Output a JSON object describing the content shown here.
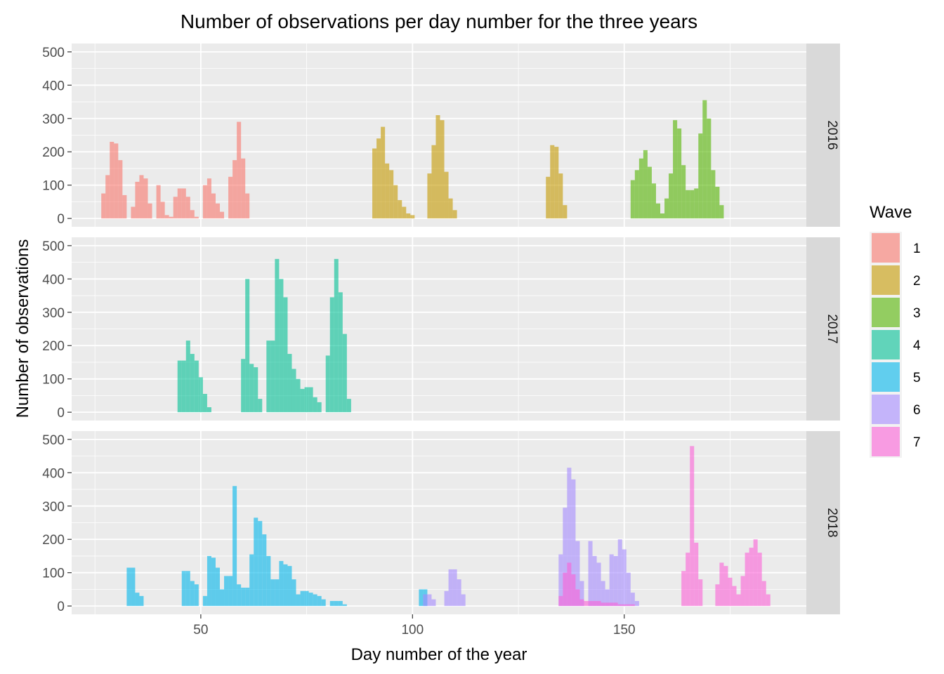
{
  "chart_data": {
    "type": "bar",
    "title": "Number of observations per day number for the three years",
    "xlabel": "Day number of the year",
    "ylabel": "Number of observations",
    "xlim": [
      19.5,
      193
    ],
    "ylim": [
      -25,
      525
    ],
    "x_ticks": [
      50,
      100,
      150
    ],
    "y_ticks": [
      0,
      100,
      200,
      300,
      400,
      500
    ],
    "grid": true,
    "bin_width": 1,
    "legend": {
      "title": "Wave",
      "placement": "right",
      "entries": [
        {
          "label": "1",
          "color": "#F8766D"
        },
        {
          "label": "2",
          "color": "#C49A00"
        },
        {
          "label": "3",
          "color": "#53B400"
        },
        {
          "label": "4",
          "color": "#00C094"
        },
        {
          "label": "5",
          "color": "#00B6EB"
        },
        {
          "label": "6",
          "color": "#A58AFF"
        },
        {
          "label": "7",
          "color": "#FB61D7"
        }
      ]
    },
    "panels": [
      {
        "strip": "2016",
        "series": [
          {
            "name": "1",
            "start_day": 27,
            "values": [
              75,
              130,
              230,
              225,
              175,
              70,
              0,
              35,
              110,
              130,
              120,
              45,
              0,
              100,
              50,
              10,
              5,
              65,
              90,
              90,
              65,
              25,
              5,
              0,
              100,
              120,
              75,
              45,
              20,
              0,
              125,
              175,
              290,
              180,
              75,
              0
            ]
          },
          {
            "name": "2",
            "start_day": 91,
            "values": [
              210,
              240,
              275,
              165,
              145,
              100,
              55,
              35,
              15,
              10,
              0,
              0,
              0,
              135,
              220,
              310,
              295,
              140,
              60,
              25
            ]
          },
          {
            "name": "2",
            "start_day": 132,
            "values": [
              125,
              220,
              215,
              135,
              40
            ]
          },
          {
            "name": "3",
            "start_day": 152,
            "values": [
              115,
              145,
              180,
              205,
              155,
              105,
              45,
              15,
              60,
              135,
              295,
              270,
              160,
              85,
              85,
              90,
              255,
              355,
              300,
              145,
              95,
              40
            ]
          }
        ]
      },
      {
        "strip": "2017",
        "series": [
          {
            "name": "4",
            "start_day": 45,
            "values": [
              155,
              155,
              215,
              175,
              155,
              105,
              55,
              15,
              0,
              0,
              0,
              0,
              0,
              0,
              0,
              160,
              400,
              145,
              135,
              40,
              0,
              215,
              215,
              460,
              400,
              345,
              175,
              130,
              100,
              70,
              75,
              75,
              45,
              30,
              0,
              170,
              345,
              460,
              360,
              235,
              40
            ]
          }
        ]
      },
      {
        "strip": "2018",
        "series": [
          {
            "name": "5",
            "start_day": 33,
            "values": [
              115,
              115,
              40,
              30,
              0,
              0,
              0,
              0,
              0,
              0,
              0,
              0,
              0,
              105,
              105,
              75,
              65,
              0,
              30,
              150,
              145,
              115,
              50,
              90,
              90,
              360,
              65,
              55,
              55,
              155,
              265,
              255,
              215,
              150,
              80,
              80,
              135,
              125,
              120,
              80,
              35,
              45,
              45,
              40,
              35,
              30,
              20,
              0,
              15,
              15,
              15,
              5
            ]
          },
          {
            "name": "5",
            "start_day": 102,
            "values": [
              50,
              50,
              0
            ]
          },
          {
            "name": "6",
            "start_day": 102,
            "values": [
              0,
              35,
              35,
              20
            ]
          },
          {
            "name": "6",
            "start_day": 108,
            "values": [
              45,
              110,
              110,
              80,
              35
            ]
          },
          {
            "name": "6",
            "start_day": 135,
            "values": [
              155,
              295,
              415,
              380,
              195,
              75,
              0,
              195,
              150,
              130,
              75,
              50,
              155,
              150,
              200,
              170,
              100,
              40,
              15
            ]
          },
          {
            "name": "7",
            "start_day": 135,
            "values": [
              30,
              100,
              130,
              95,
              50,
              20,
              15,
              15,
              15,
              15,
              10,
              10,
              10,
              10,
              5,
              5,
              5,
              5
            ]
          },
          {
            "name": "7",
            "start_day": 164,
            "values": [
              105,
              160,
              480,
              190,
              80,
              0,
              0,
              0,
              65,
              130,
              120,
              85,
              60,
              35,
              90,
              160,
              175,
              200,
              160,
              75,
              35
            ]
          }
        ]
      }
    ]
  }
}
